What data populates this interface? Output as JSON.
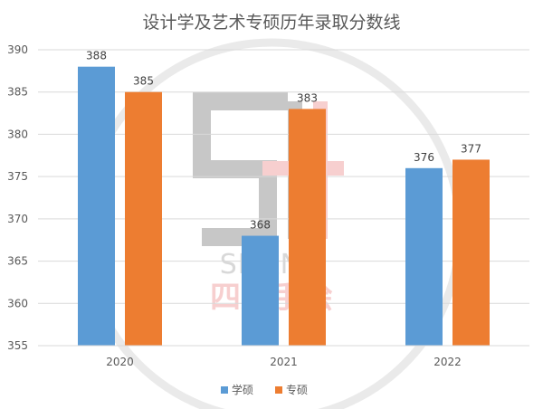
{
  "chart_data": {
    "type": "bar",
    "title": "设计学及艺术专硕历年录取分数线",
    "categories": [
      "2020",
      "2021",
      "2022"
    ],
    "series": [
      {
        "name": "学硕",
        "values": [
          388,
          368,
          376
        ],
        "color": "#5b9bd5"
      },
      {
        "name": "专硕",
        "values": [
          385,
          383,
          377
        ],
        "color": "#ed7d31"
      }
    ],
    "y_ticks": [
      "355",
      "360",
      "365",
      "370",
      "375",
      "380",
      "385",
      "390"
    ],
    "ylim": [
      355,
      390
    ],
    "xlabel": "",
    "ylabel": "",
    "grid": true,
    "legend": "bottom"
  },
  "watermark": {
    "brand_text": "SIFANG",
    "cn_text": "四方手绘"
  }
}
